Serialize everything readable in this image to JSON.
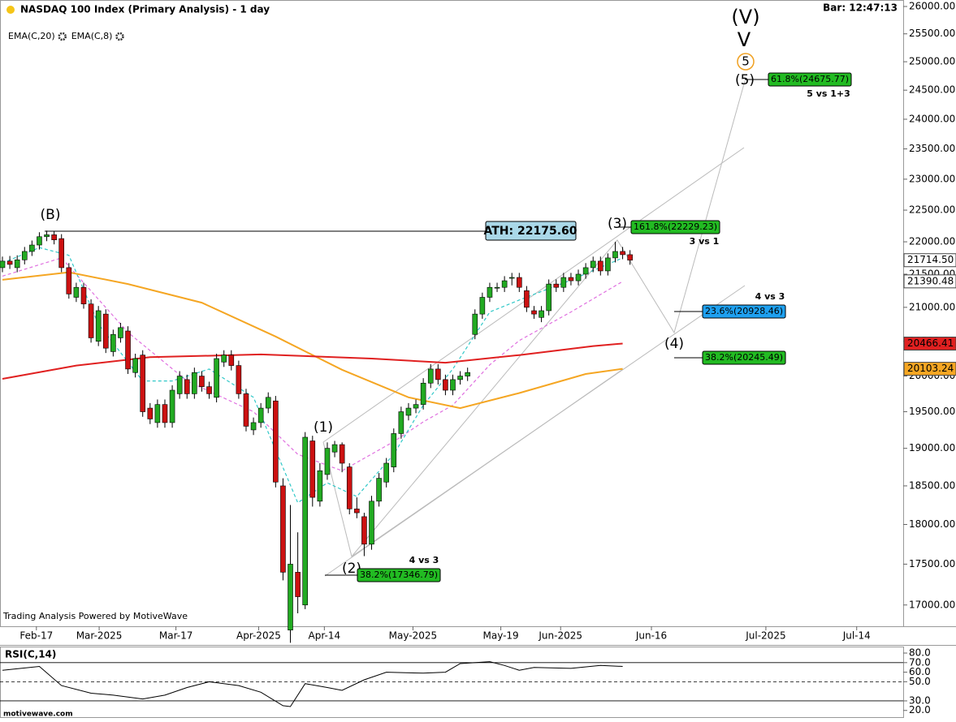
{
  "chart_data": [
    {
      "type": "candlestick",
      "title": "NASDAQ 100 Index (Primary Analysis) - 1 day",
      "clock": "Bar: 12:47:13",
      "credit": "Trading Analysis Powered by MotiveWave",
      "log": true,
      "up_color": "#22aa22",
      "down_color": "#cc1111",
      "xlim": [
        -0.33,
        122
      ],
      "ylim": [
        16745,
        26120
      ],
      "xticks": [
        {
          "value": 4.6,
          "label": "Feb-17"
        },
        {
          "value": 13.1,
          "label": "Mar-2025"
        },
        {
          "value": 23.5,
          "label": "Mar-17"
        },
        {
          "value": 34.7,
          "label": "Apr-2025"
        },
        {
          "value": 43.6,
          "label": "Apr-14"
        },
        {
          "value": 55.6,
          "label": "May-2025"
        },
        {
          "value": 67.5,
          "label": "May-19"
        },
        {
          "value": 75.6,
          "label": "Jun-2025"
        },
        {
          "value": 87.9,
          "label": "Jun-16"
        },
        {
          "value": 103.4,
          "label": "Jul-2025"
        },
        {
          "value": 115.7,
          "label": "Jul-14"
        }
      ],
      "yticks": [
        {
          "value": 17000,
          "label": "17000.00"
        },
        {
          "value": 17500,
          "label": "17500.00"
        },
        {
          "value": 18000,
          "label": "18000.00"
        },
        {
          "value": 18500,
          "label": "18500.00"
        },
        {
          "value": 19000,
          "label": "19000.00"
        },
        {
          "value": 19500,
          "label": "19500.00"
        },
        {
          "value": 20000,
          "label": "20000.00"
        },
        {
          "value": 20500,
          "label": "20500.00"
        },
        {
          "value": 21000,
          "label": "21000.00"
        },
        {
          "value": 21500,
          "label": "21500.00"
        },
        {
          "value": 22000,
          "label": "22000.00"
        },
        {
          "value": 22500,
          "label": "22500.00"
        },
        {
          "value": 23000,
          "label": "23000.00"
        },
        {
          "value": 23500,
          "label": "23500.00"
        },
        {
          "value": 24000,
          "label": "24000.00"
        },
        {
          "value": 24500,
          "label": "24500.00"
        },
        {
          "value": 25000,
          "label": "25000.00"
        },
        {
          "value": 25500,
          "label": "25500.00"
        },
        {
          "value": 26000,
          "label": "26000.00"
        }
      ],
      "open": [
        21600,
        21700,
        21600,
        21720,
        21850,
        21950,
        22080,
        22110,
        22050,
        21600,
        21150,
        21300,
        21050,
        20500,
        20900,
        20350,
        20550,
        20650,
        20050,
        20300,
        19550,
        19350,
        19600,
        19350,
        19750,
        19950,
        19750,
        20000,
        19850,
        19700,
        20200,
        20300,
        20150,
        19750,
        19250,
        19350,
        19550,
        19650,
        18500,
        16700,
        17400,
        17000,
        19100,
        18300,
        18650,
        18950,
        19050,
        18750,
        18200,
        18100,
        17750,
        18300,
        18550,
        18750,
        19200,
        19450,
        19550,
        19600,
        19900,
        20100,
        19950,
        19800,
        19950,
        20000,
        20600,
        20900,
        21150,
        21300,
        21300,
        21450,
        21450,
        21250,
        20950,
        20850,
        20950,
        21350,
        21300,
        21450,
        21400,
        21500,
        21600,
        21700,
        21550,
        21750,
        21850,
        21800
      ],
      "high": [
        21770,
        21780,
        21790,
        21920,
        22020,
        22150,
        22175.6,
        22170,
        22120,
        21670,
        21370,
        21370,
        21120,
        21020,
        20970,
        20670,
        20770,
        20720,
        20320,
        20370,
        19620,
        19670,
        19670,
        19870,
        20070,
        20020,
        20120,
        20070,
        19920,
        20320,
        20370,
        20370,
        20220,
        19820,
        19420,
        19620,
        19770,
        19720,
        18600,
        18250,
        17900,
        19220,
        19170,
        18800,
        19080,
        19100,
        19080,
        18800,
        18350,
        18150,
        18370,
        18670,
        18870,
        19270,
        19570,
        19620,
        19670,
        19970,
        20170,
        20170,
        20020,
        20020,
        20070,
        20120,
        20970,
        21220,
        21370,
        21370,
        21470,
        21520,
        21520,
        21320,
        21020,
        21020,
        21420,
        21420,
        21520,
        21520,
        21570,
        21670,
        21770,
        21770,
        21820,
        22000,
        21920,
        21870
      ],
      "low": [
        21530,
        21580,
        21530,
        21650,
        21780,
        21880,
        22010,
        21960,
        21530,
        21130,
        21080,
        20980,
        20480,
        20430,
        20330,
        20280,
        20480,
        20030,
        19980,
        19430,
        19330,
        19280,
        19280,
        19280,
        19680,
        19680,
        19680,
        19780,
        19680,
        19630,
        20130,
        20080,
        19680,
        19230,
        19180,
        19280,
        19480,
        18480,
        17300,
        16550,
        16900,
        16950,
        18230,
        18230,
        18580,
        18880,
        18680,
        18130,
        18080,
        17600,
        17680,
        18230,
        18480,
        18680,
        19130,
        19380,
        19480,
        19530,
        19830,
        19880,
        19730,
        19730,
        19880,
        19930,
        20530,
        20830,
        21080,
        21230,
        21230,
        21330,
        21230,
        20930,
        20830,
        20780,
        20880,
        21230,
        21230,
        21330,
        21330,
        21430,
        21530,
        21480,
        21480,
        21680,
        21730,
        21644.5
      ],
      "close": [
        21700,
        21650,
        21720,
        21850,
        21950,
        22080,
        22110,
        22030,
        21600,
        21200,
        21300,
        21050,
        20550,
        20950,
        20400,
        20600,
        20700,
        20100,
        20250,
        19500,
        19400,
        19600,
        19350,
        19800,
        20000,
        19750,
        20050,
        19850,
        19750,
        20250,
        20300,
        20150,
        19750,
        19300,
        19350,
        19550,
        19700,
        18550,
        17400,
        17500,
        17100,
        19150,
        18350,
        18700,
        19000,
        19050,
        18800,
        18200,
        18150,
        17750,
        18300,
        18600,
        18800,
        19200,
        19500,
        19550,
        19600,
        19900,
        20100,
        19950,
        19800,
        19950,
        20000,
        20050,
        20900,
        21150,
        21300,
        21300,
        21400,
        21450,
        21300,
        21000,
        20900,
        20950,
        21350,
        21300,
        21450,
        21400,
        21500,
        21600,
        21700,
        21550,
        21750,
        21850,
        21800,
        21714.5
      ],
      "lines": [
        {
          "name": "EMA(C,20)",
          "color": "#e070e0",
          "dash": true,
          "x": [
            0,
            8,
            17,
            25,
            34,
            40,
            46,
            53,
            57,
            61,
            66,
            70,
            77,
            84
          ],
          "values": [
            21470,
            21750,
            20630,
            19930,
            19500,
            18920,
            18700,
            19090,
            19360,
            19590,
            20160,
            20510,
            20930,
            21390.48
          ]
        },
        {
          "name": "EMA(C,8)",
          "color": "#30c8c8",
          "dash": true,
          "x": [
            0,
            5,
            9,
            13,
            19,
            23,
            28,
            34,
            40,
            44,
            48,
            53,
            57,
            61,
            66,
            70,
            77,
            84
          ],
          "values": [
            21670,
            21910,
            21790,
            20750,
            19930,
            19930,
            20100,
            19700,
            18280,
            18540,
            18360,
            18920,
            19590,
            20100,
            20930,
            21110,
            21410,
            21750
          ]
        },
        {
          "color": "#f5a623",
          "dash": false,
          "x": [
            0,
            9,
            17,
            27,
            37,
            46,
            55,
            62,
            70,
            79,
            84
          ],
          "values": [
            21414,
            21530,
            21350,
            21070,
            20570,
            20090,
            19700,
            19550,
            19760,
            20030,
            20103.24
          ]
        },
        {
          "color": "#e02020",
          "dash": false,
          "x": [
            0,
            10,
            20,
            35,
            50,
            60,
            70,
            80,
            84
          ],
          "values": [
            19960,
            20150,
            20270,
            20310,
            20250,
            20190,
            20300,
            20430,
            20466.41
          ]
        }
      ],
      "last_values": [
        {
          "value": 21714.5,
          "label": "21714.50",
          "color": "#ffffff",
          "text_color": "#000000"
        },
        {
          "value": 21390.48,
          "label": "21390.48",
          "color": "#ffffff",
          "text_color": "#000000"
        },
        {
          "value": 20466.41,
          "label": "20466.41",
          "color": "#e02020",
          "text_color": "#ffffff"
        },
        {
          "value": 20103.24,
          "label": "20103.24",
          "color": "#f5a623",
          "text_color": "#000000"
        }
      ],
      "waves": [
        {
          "text": "(B)",
          "color": "#dd0000"
        },
        {
          "text": "(1)",
          "color": "#0000bb"
        },
        {
          "text": "(2)",
          "color": "#0000bb"
        },
        {
          "text": "(3)",
          "color": "#0000bb"
        },
        {
          "text": "(4)",
          "color": "#0000bb"
        },
        {
          "text": "(5)",
          "color": "#0000bb"
        },
        {
          "text": "(V)",
          "color": "#dd0000"
        },
        {
          "text": "V",
          "color": "#1060d0"
        },
        {
          "text": "5",
          "color": "#f0a020"
        }
      ],
      "ath": "ATH: 22175.60",
      "fibs": [
        {
          "text": "161.8%(22229.23)",
          "color": "#22bb22"
        },
        {
          "text": "23.6%(20928.46)",
          "color": "#1ea0f0"
        },
        {
          "text": "38.2%(20245.49)",
          "color": "#22bb22"
        },
        {
          "text": "61.8%(24675.77)",
          "color": "#22bb22"
        },
        {
          "text": "38.2%(17346.79)",
          "color": "#22bb22"
        }
      ],
      "notes": [
        "3 vs 1",
        "4 vs 3",
        "5 vs 1+3",
        "4 vs 3"
      ]
    },
    {
      "type": "line",
      "name": "RSI(C,14)",
      "footer": "motivewave.com",
      "color": "#000000",
      "ylim": [
        13,
        86.8
      ],
      "yticks": [
        {
          "value": 20,
          "label": "20.0"
        },
        {
          "value": 30,
          "label": "30.0"
        },
        {
          "value": 50,
          "label": "50.0"
        },
        {
          "value": 60,
          "label": "60.0"
        },
        {
          "value": 70,
          "label": "70.0"
        },
        {
          "value": 80,
          "label": "80.0"
        }
      ],
      "hlines": [
        {
          "value": 70,
          "dash": false
        },
        {
          "value": 50,
          "dash": true
        },
        {
          "value": 30,
          "dash": false
        }
      ],
      "x": [
        0,
        5,
        8,
        12,
        15,
        19,
        22,
        25,
        28,
        32,
        35,
        38,
        39,
        41,
        44,
        46,
        49,
        52,
        57,
        60,
        62,
        66,
        68,
        70,
        72,
        77,
        81,
        84
      ],
      "values": [
        62,
        66,
        46,
        38,
        36,
        32,
        36,
        44,
        50,
        46,
        39,
        25,
        24,
        48,
        44,
        41,
        52,
        60,
        59,
        60,
        69,
        71,
        67,
        62,
        65,
        64,
        67,
        66
      ]
    }
  ]
}
